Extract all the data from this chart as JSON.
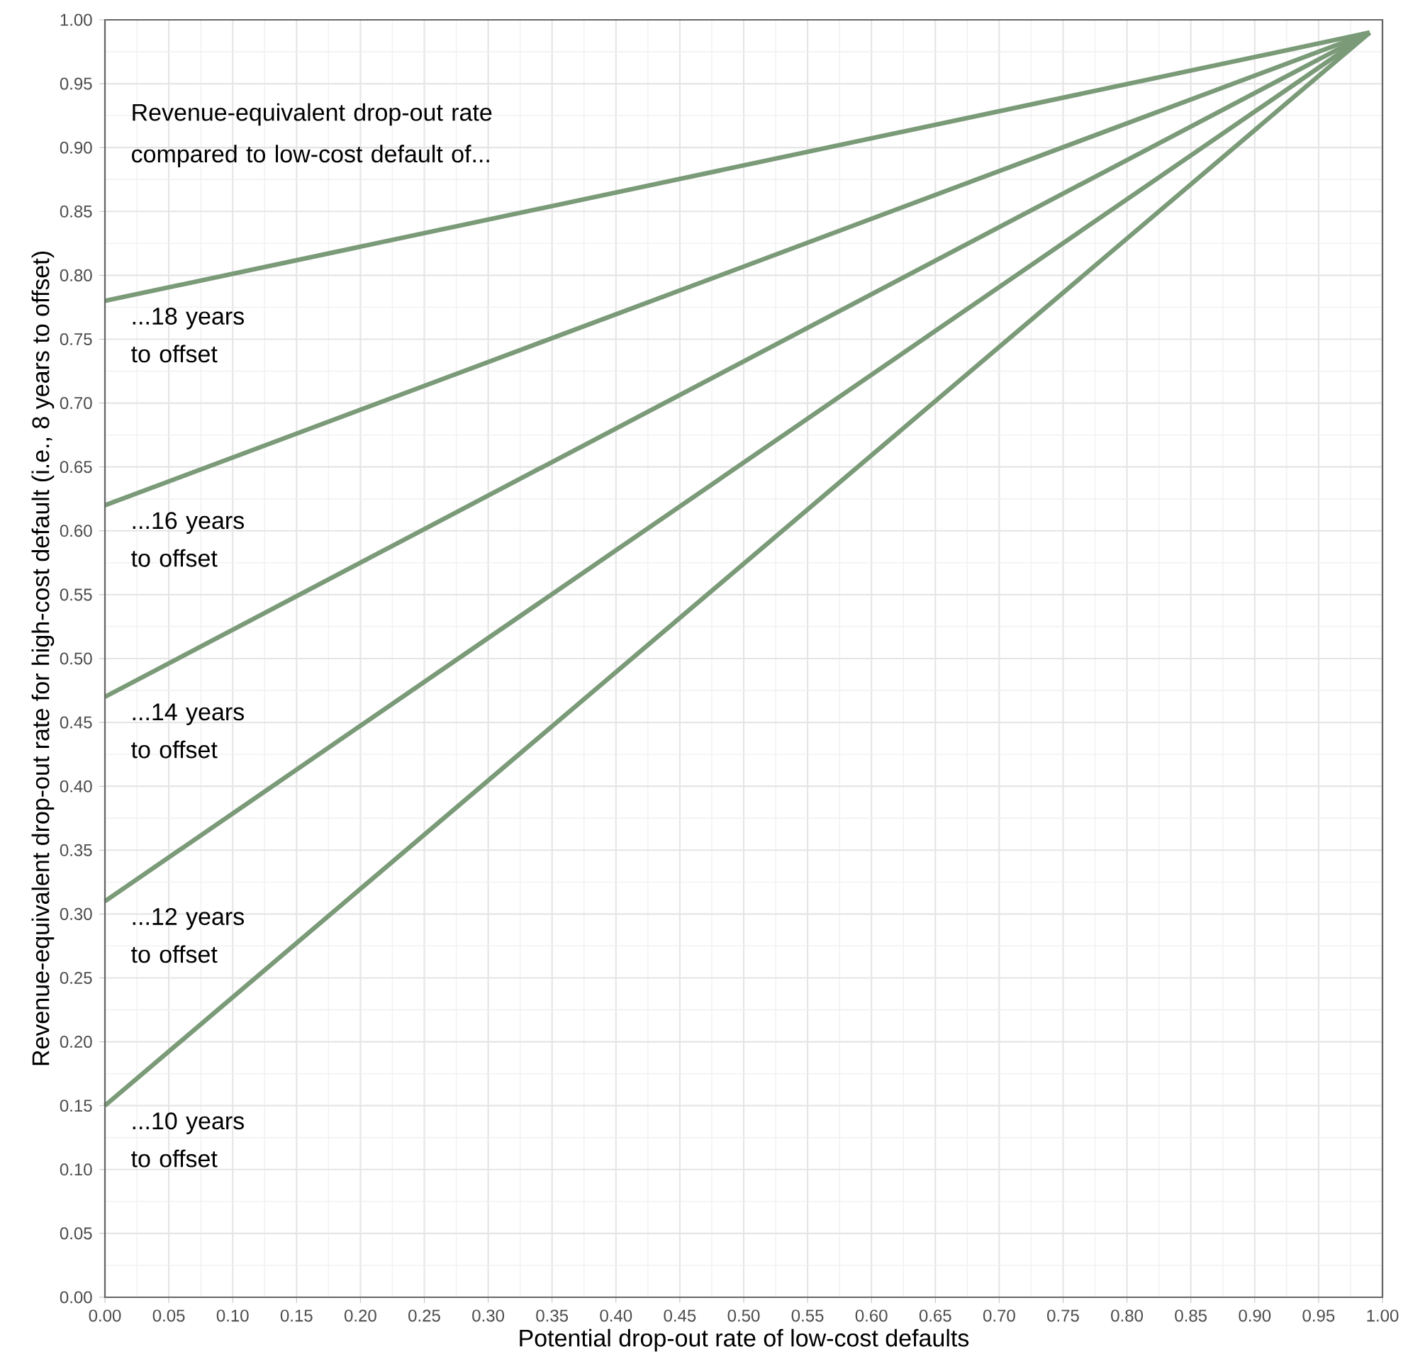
{
  "chart_data": {
    "type": "line",
    "xlabel": "Potential drop-out rate of low-cost defaults",
    "ylabel": "Revenue-equivalent drop-out rate for high-cost default (i.e., 8 years to offset)",
    "annotations": [
      "Revenue-equivalent drop-out rate compared to low-cost default of..."
    ],
    "x": [
      0,
      0.99
    ],
    "series": [
      {
        "name": "...18 years to offset",
        "color": "#7a9a78",
        "values": [
          0.78,
          0.99
        ]
      },
      {
        "name": "...16 years to offset",
        "color": "#7a9a78",
        "values": [
          0.62,
          0.99
        ]
      },
      {
        "name": "...14 years to offset",
        "color": "#7a9a78",
        "values": [
          0.47,
          0.99
        ]
      },
      {
        "name": "...12 years to offset",
        "color": "#7a9a78",
        "values": [
          0.31,
          0.99
        ]
      },
      {
        "name": "...10 years to offset",
        "color": "#7a9a78",
        "values": [
          0.15,
          0.99
        ]
      }
    ],
    "xlim": [
      0,
      1
    ],
    "ylim": [
      0,
      1
    ],
    "xticks": [
      {
        "value": 0,
        "label": "0.00"
      },
      {
        "value": 0.05,
        "label": "0.05"
      },
      {
        "value": 0.1,
        "label": "0.10"
      },
      {
        "value": 0.15,
        "label": "0.15"
      },
      {
        "value": 0.2,
        "label": "0.20"
      },
      {
        "value": 0.25,
        "label": "0.25"
      },
      {
        "value": 0.3,
        "label": "0.30"
      },
      {
        "value": 0.35,
        "label": "0.35"
      },
      {
        "value": 0.4,
        "label": "0.40"
      },
      {
        "value": 0.45,
        "label": "0.45"
      },
      {
        "value": 0.5,
        "label": "0.50"
      },
      {
        "value": 0.55,
        "label": "0.55"
      },
      {
        "value": 0.6,
        "label": "0.60"
      },
      {
        "value": 0.65,
        "label": "0.65"
      },
      {
        "value": 0.7,
        "label": "0.70"
      },
      {
        "value": 0.75,
        "label": "0.75"
      },
      {
        "value": 0.8,
        "label": "0.80"
      },
      {
        "value": 0.85,
        "label": "0.85"
      },
      {
        "value": 0.9,
        "label": "0.90"
      },
      {
        "value": 0.95,
        "label": "0.95"
      },
      {
        "value": 1,
        "label": "1.00"
      }
    ],
    "yticks": [
      {
        "value": 0,
        "label": "0.00"
      },
      {
        "value": 0.05,
        "label": "0.05"
      },
      {
        "value": 0.1,
        "label": "0.10"
      },
      {
        "value": 0.15,
        "label": "0.15"
      },
      {
        "value": 0.2,
        "label": "0.20"
      },
      {
        "value": 0.25,
        "label": "0.25"
      },
      {
        "value": 0.3,
        "label": "0.30"
      },
      {
        "value": 0.35,
        "label": "0.35"
      },
      {
        "value": 0.4,
        "label": "0.40"
      },
      {
        "value": 0.45,
        "label": "0.45"
      },
      {
        "value": 0.5,
        "label": "0.50"
      },
      {
        "value": 0.55,
        "label": "0.55"
      },
      {
        "value": 0.6,
        "label": "0.60"
      },
      {
        "value": 0.65,
        "label": "0.65"
      },
      {
        "value": 0.7,
        "label": "0.70"
      },
      {
        "value": 0.75,
        "label": "0.75"
      },
      {
        "value": 0.8,
        "label": "0.80"
      },
      {
        "value": 0.85,
        "label": "0.85"
      },
      {
        "value": 0.9,
        "label": "0.90"
      },
      {
        "value": 0.95,
        "label": "0.95"
      },
      {
        "value": 1,
        "label": "1.00"
      }
    ],
    "grid": true,
    "line_style": "solid"
  }
}
